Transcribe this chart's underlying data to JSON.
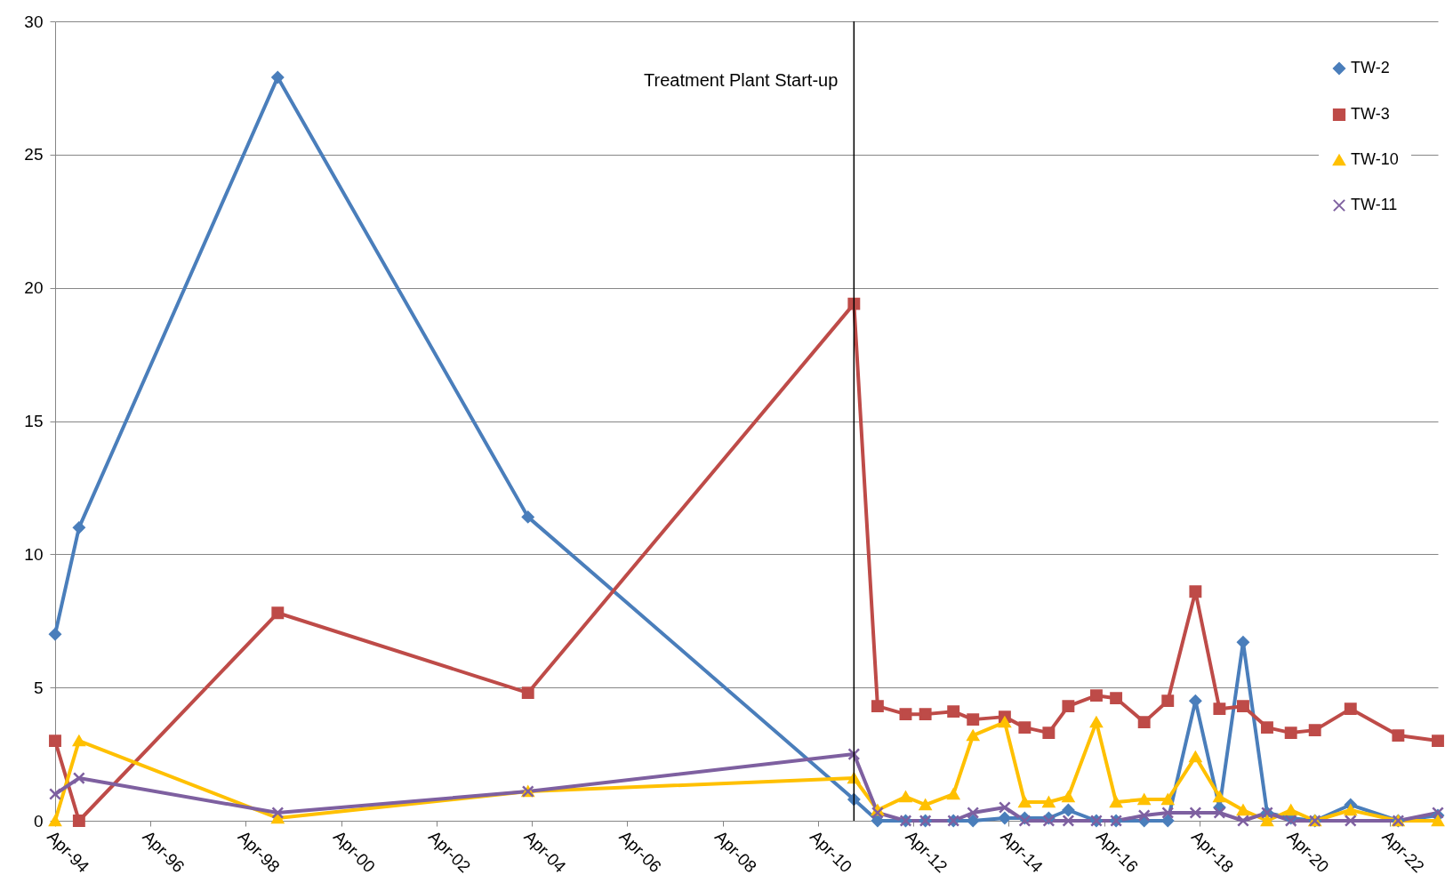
{
  "chart_data": {
    "type": "line",
    "x": [
      "1994-04",
      "1994-10",
      "1998-12",
      "2004-03",
      "2011-01",
      "2011-07",
      "2012-02",
      "2012-07",
      "2013-02",
      "2013-07",
      "2014-03",
      "2014-08",
      "2015-02",
      "2015-07",
      "2016-02",
      "2016-07",
      "2017-02",
      "2017-08",
      "2018-03",
      "2018-09",
      "2019-03",
      "2019-09",
      "2020-03",
      "2020-09",
      "2021-06",
      "2022-06",
      "2023-04"
    ],
    "series": [
      {
        "name": "TW-2",
        "color": "#4a7ebb",
        "marker": "diamond",
        "values": [
          7.0,
          11.0,
          27.9,
          11.4,
          0.8,
          0,
          0,
          0,
          0,
          0,
          0.1,
          0.1,
          0.1,
          0.4,
          0,
          0,
          0,
          0,
          4.5,
          0.5,
          6.7,
          0.3,
          0.1,
          0,
          0.6,
          0,
          0.2
        ]
      },
      {
        "name": "TW-3",
        "color": "#be4b48",
        "marker": "square",
        "values": [
          3.0,
          0,
          7.8,
          4.8,
          19.4,
          4.3,
          4.0,
          4.0,
          4.1,
          3.8,
          3.9,
          3.5,
          3.3,
          4.3,
          4.7,
          4.6,
          3.7,
          4.5,
          8.6,
          4.2,
          4.3,
          3.5,
          3.3,
          3.4,
          4.2,
          3.2,
          3.0
        ]
      },
      {
        "name": "TW-10",
        "color": "#ffc000",
        "marker": "triangle",
        "values": [
          0,
          3.0,
          0.1,
          1.1,
          1.6,
          0.4,
          0.9,
          0.6,
          1.0,
          3.2,
          3.7,
          0.7,
          0.7,
          0.9,
          3.7,
          0.7,
          0.8,
          0.8,
          2.4,
          0.9,
          0.4,
          0,
          0.4,
          0,
          0.4,
          0,
          0
        ]
      },
      {
        "name": "TW-11",
        "color": "#7e60a0",
        "marker": "cross",
        "values": [
          1.0,
          1.6,
          0.3,
          1.1,
          2.5,
          0.3,
          0,
          0,
          0,
          0.3,
          0.5,
          0,
          0,
          0,
          0,
          0,
          0.2,
          0.3,
          0.3,
          0.3,
          0,
          0.3,
          0,
          0,
          0,
          0,
          0.3
        ]
      }
    ],
    "xlim": [
      "1994-04",
      "2023-04"
    ],
    "xticks": [
      {
        "value": "1994-04",
        "label": "Apr-94"
      },
      {
        "value": "1996-04",
        "label": "Apr-96"
      },
      {
        "value": "1998-04",
        "label": "Apr-98"
      },
      {
        "value": "2000-04",
        "label": "Apr-00"
      },
      {
        "value": "2002-04",
        "label": "Apr-02"
      },
      {
        "value": "2004-04",
        "label": "Apr-04"
      },
      {
        "value": "2006-04",
        "label": "Apr-06"
      },
      {
        "value": "2008-04",
        "label": "Apr-08"
      },
      {
        "value": "2010-04",
        "label": "Apr-10"
      },
      {
        "value": "2012-04",
        "label": "Apr-12"
      },
      {
        "value": "2014-04",
        "label": "Apr-14"
      },
      {
        "value": "2016-04",
        "label": "Apr-16"
      },
      {
        "value": "2018-04",
        "label": "Apr-18"
      },
      {
        "value": "2020-04",
        "label": "Apr-20"
      },
      {
        "value": "2022-04",
        "label": "Apr-22"
      }
    ],
    "ylim": [
      0,
      30
    ],
    "yticks": [
      0,
      5,
      10,
      15,
      20,
      25,
      30
    ],
    "ref_lines": [
      {
        "axis": "x",
        "value": "2011-01",
        "label": "Treatment Plant Start-up",
        "color": "#000000"
      }
    ],
    "grid": "y",
    "legend": "top right",
    "line_style": "solid"
  }
}
